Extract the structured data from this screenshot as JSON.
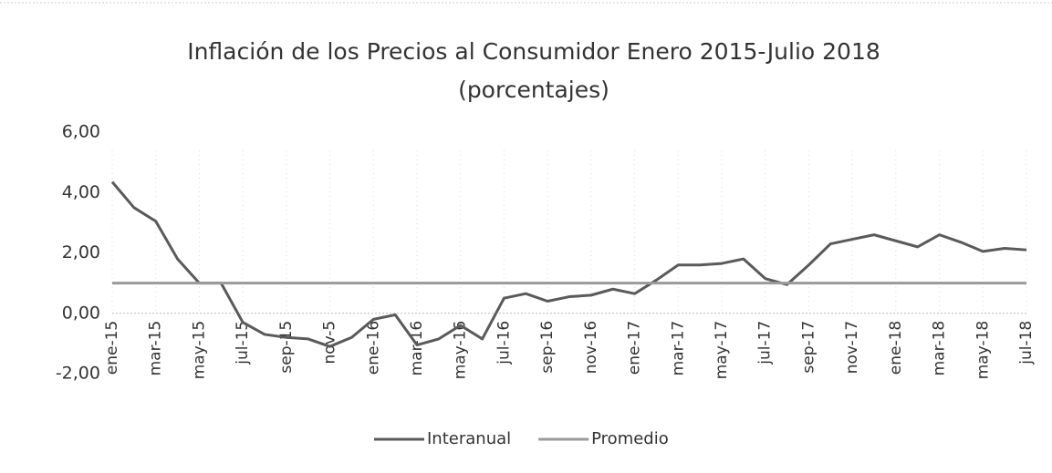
{
  "chart_data": {
    "type": "line",
    "title": "Inflación de los Precios al Consumidor Enero 2015-Julio 2018",
    "subtitle": "(porcentajes)",
    "categories": [
      "ene-15",
      null,
      "mar-15",
      null,
      "may-15",
      null,
      "jul-15",
      null,
      "sep-15",
      null,
      "nov-5",
      null,
      "ene-16",
      null,
      "mar-16",
      null,
      "may-16",
      null,
      "jul-16",
      null,
      "sep-16",
      null,
      "nov-16",
      null,
      "ene-17",
      null,
      "mar-17",
      null,
      "may-17",
      null,
      "jul-17",
      null,
      "sep-17",
      null,
      "nov-17",
      null,
      "ene-18",
      null,
      "mar-18",
      null,
      "may-18",
      null,
      "jul-18"
    ],
    "series": [
      {
        "name": "Interanual",
        "color": "#5a5a5a",
        "values": [
          4.35,
          3.5,
          3.05,
          1.8,
          1.0,
          1.0,
          -0.3,
          -0.7,
          -0.8,
          -0.85,
          -1.1,
          -0.8,
          -0.2,
          -0.05,
          -1.05,
          -0.85,
          -0.4,
          -0.85,
          0.5,
          0.65,
          0.4,
          0.55,
          0.6,
          0.8,
          0.65,
          1.1,
          1.6,
          1.6,
          1.65,
          1.8,
          1.15,
          0.95,
          1.6,
          2.3,
          2.45,
          2.6,
          2.4,
          2.2,
          2.6,
          2.35,
          2.05,
          2.15,
          2.1
        ]
      },
      {
        "name": "Promedio",
        "color": "#9a9a9a",
        "values": [
          1.0,
          1.0,
          1.0,
          1.0,
          1.0,
          1.0,
          1.0,
          1.0,
          1.0,
          1.0,
          1.0,
          1.0,
          1.0,
          1.0,
          1.0,
          1.0,
          1.0,
          1.0,
          1.0,
          1.0,
          1.0,
          1.0,
          1.0,
          1.0,
          1.0,
          1.0,
          1.0,
          1.0,
          1.0,
          1.0,
          1.0,
          1.0,
          1.0,
          1.0,
          1.0,
          1.0,
          1.0,
          1.0,
          1.0,
          1.0,
          1.0,
          1.0,
          1.0
        ]
      }
    ],
    "ylim": [
      -2,
      6
    ],
    "yticks": [
      {
        "value": -2,
        "label": "-2,00"
      },
      {
        "value": 0,
        "label": "0,00"
      },
      {
        "value": 2,
        "label": "2,00"
      },
      {
        "value": 4,
        "label": "4,00"
      },
      {
        "value": 6,
        "label": "6,00"
      }
    ],
    "legend": "bottom"
  }
}
